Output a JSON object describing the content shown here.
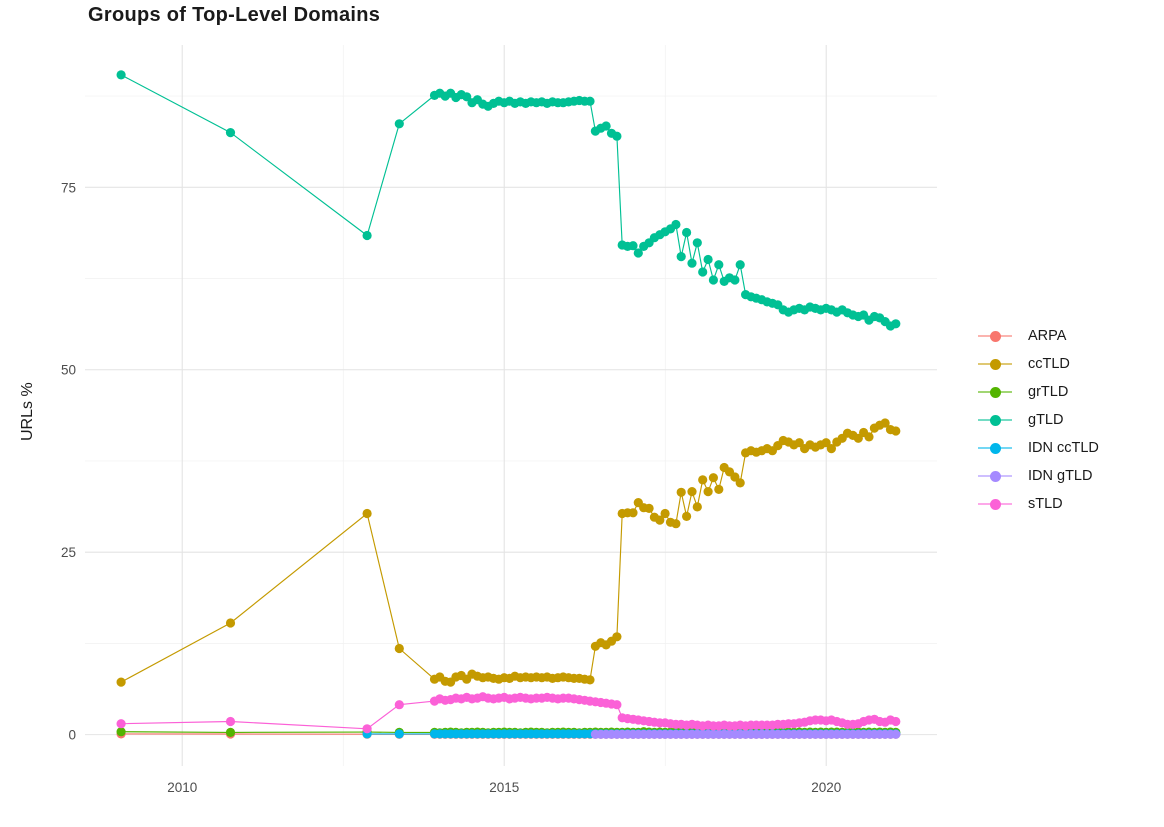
{
  "page": {
    "title": "Groups of Top-Level Domains",
    "y_axis_title": "URLs %"
  },
  "chart_data": {
    "type": "line",
    "title": "Groups of Top-Level Domains",
    "xlabel": "",
    "ylabel": "URLs %",
    "grid": true,
    "legend_position": "right",
    "background": "#ffffff",
    "grid_major_color": "#e4e4e4",
    "grid_minor_color": "#f0f0f0",
    "axis_text_color": "#4d4d4d",
    "x_ticks": [
      2010,
      2015,
      2020
    ],
    "x_tick_labels": [
      "2010",
      "2015",
      "2020"
    ],
    "x_minor_ticks": [
      2012.5,
      2017.5
    ],
    "y_ticks": [
      0,
      25,
      50,
      75
    ],
    "y_tick_labels": [
      "0",
      "25",
      "50",
      "75"
    ],
    "y_minor_ticks": [
      12.5,
      37.5,
      62.5,
      87.5
    ],
    "x_range": [
      2008.49,
      2021.72
    ],
    "y_range": [
      -4.3,
      94.5
    ],
    "sparse_dates": [
      2009.05,
      2010.75,
      2012.87,
      2013.37
    ],
    "dense_start": 2013.9167,
    "dense_step": 0.0833,
    "series": [
      {
        "name": "ARPA",
        "color": "#F8766D",
        "sparse": [
          0.1,
          0.08,
          0.06,
          0.05
        ],
        "dense": [
          0.05,
          0.05,
          0.05,
          0.05,
          0.05,
          0.05,
          0.05,
          0.05,
          0.05,
          0.05,
          0.05,
          0.05,
          0.05,
          0.05,
          0.05,
          0.05,
          0.05,
          0.05,
          0.05,
          0.05,
          0.05,
          0.05,
          0.05,
          0.05,
          0.05,
          0.05,
          0.05,
          0.05,
          0.05,
          0.05,
          0.05,
          0.05,
          0.05,
          0.05,
          0.05,
          0.05,
          0.05,
          0.05,
          0.05,
          0.05,
          0.05,
          0.05,
          0.05,
          0.05,
          0.05,
          0.05,
          0.05,
          0.05,
          0.05,
          0.05,
          0.05,
          0.05,
          0.05,
          0.05,
          0.05,
          0.05,
          0.05,
          0.05,
          0.05,
          0.05,
          0.05,
          0.05,
          0.05,
          0.05,
          0.05,
          0.05,
          0.05,
          0.05,
          0.05,
          0.05,
          0.05,
          0.05,
          0.05,
          0.05,
          0.05,
          0.05,
          0.05,
          0.05,
          0.05,
          0.05,
          0.05,
          0.05,
          0.05,
          0.05,
          0.05,
          0.05,
          0.05
        ]
      },
      {
        "name": "ccTLD",
        "color": "#C49A00",
        "sparse": [
          7.2,
          15.3,
          30.3,
          11.8
        ],
        "dense": [
          7.6,
          7.9,
          7.3,
          7.2,
          7.9,
          8.1,
          7.6,
          8.3,
          8.0,
          7.8,
          7.9,
          7.7,
          7.6,
          7.8,
          7.7,
          8.0,
          7.8,
          7.9,
          7.8,
          7.9,
          7.8,
          7.9,
          7.7,
          7.8,
          7.9,
          7.8,
          7.7,
          7.7,
          7.6,
          7.5,
          12.1,
          12.6,
          12.3,
          12.8,
          13.4,
          30.3,
          30.4,
          30.4,
          31.8,
          31.1,
          31.0,
          29.8,
          29.4,
          30.3,
          29.1,
          28.9,
          33.2,
          29.9,
          33.3,
          31.2,
          34.9,
          33.3,
          35.2,
          33.6,
          36.6,
          36.0,
          35.3,
          34.5,
          38.6,
          38.9,
          38.7,
          38.9,
          39.2,
          38.9,
          39.6,
          40.3,
          40.1,
          39.7,
          40.0,
          39.2,
          39.7,
          39.4,
          39.7,
          40.0,
          39.2,
          40.1,
          40.6,
          41.3,
          41.0,
          40.6,
          41.4,
          40.8,
          42.0,
          42.4,
          42.7,
          41.8,
          41.6
        ]
      },
      {
        "name": "grTLD",
        "color": "#53B400",
        "sparse": [
          0.4,
          0.3,
          0.35,
          0.3
        ],
        "dense": [
          0.3,
          0.25,
          0.3,
          0.35,
          0.3,
          0.25,
          0.3,
          0.3,
          0.35,
          0.3,
          0.25,
          0.3,
          0.3,
          0.35,
          0.3,
          0.3,
          0.25,
          0.3,
          0.35,
          0.3,
          0.3,
          0.25,
          0.3,
          0.3,
          0.35,
          0.3,
          0.3,
          0.25,
          0.3,
          0.3,
          0.35,
          0.3,
          0.3,
          0.35,
          0.3,
          0.3,
          0.35,
          0.3,
          0.3,
          0.4,
          0.35,
          0.3,
          0.35,
          0.3,
          0.35,
          0.4,
          0.35,
          0.3,
          0.35,
          0.3,
          0.35,
          0.3,
          0.35,
          0.35,
          0.3,
          0.35,
          0.3,
          0.35,
          0.3,
          0.35,
          0.3,
          0.35,
          0.3,
          0.35,
          0.35,
          0.3,
          0.35,
          0.3,
          0.35,
          0.3,
          0.35,
          0.3,
          0.35,
          0.3,
          0.35,
          0.35,
          0.3,
          0.35,
          0.3,
          0.35,
          0.3,
          0.35,
          0.3,
          0.35,
          0.3,
          0.35,
          0.3
        ]
      },
      {
        "name": "gTLD",
        "color": "#00C094",
        "sparse": [
          90.4,
          82.5,
          68.4,
          83.7
        ],
        "dense": [
          87.6,
          87.9,
          87.5,
          87.9,
          87.3,
          87.7,
          87.4,
          86.6,
          87.0,
          86.4,
          86.1,
          86.5,
          86.8,
          86.6,
          86.8,
          86.5,
          86.7,
          86.5,
          86.7,
          86.6,
          86.7,
          86.5,
          86.7,
          86.6,
          86.6,
          86.7,
          86.8,
          86.9,
          86.8,
          86.8,
          82.7,
          83.1,
          83.4,
          82.4,
          82.0,
          67.1,
          66.9,
          67.0,
          66.0,
          66.9,
          67.4,
          68.1,
          68.5,
          68.9,
          69.3,
          69.9,
          65.5,
          68.8,
          64.6,
          67.4,
          63.4,
          65.1,
          62.3,
          64.4,
          62.1,
          62.6,
          62.3,
          64.4,
          60.3,
          60.0,
          59.8,
          59.6,
          59.3,
          59.1,
          58.9,
          58.2,
          57.9,
          58.2,
          58.4,
          58.2,
          58.6,
          58.4,
          58.2,
          58.4,
          58.2,
          57.9,
          58.2,
          57.8,
          57.5,
          57.3,
          57.5,
          56.8,
          57.3,
          57.1,
          56.6,
          56.0,
          56.3
        ]
      },
      {
        "name": "IDN ccTLD",
        "color": "#00B6EB",
        "sparse": [
          null,
          null,
          0.1,
          0.1
        ],
        "dense": [
          0.1,
          0.1,
          0.1,
          0.1,
          0.1,
          0.1,
          0.1,
          0.1,
          0.1,
          0.1,
          0.1,
          0.1,
          0.1,
          0.1,
          0.1,
          0.1,
          0.1,
          0.1,
          0.1,
          0.1,
          0.1,
          0.1,
          0.1,
          0.1,
          0.1,
          0.1,
          0.1,
          0.1,
          0.1,
          0.1,
          0.1,
          0.1,
          0.1,
          0.1,
          0.1,
          0.1,
          0.1,
          0.1,
          0.1,
          0.1,
          0.1,
          0.1,
          0.1,
          0.1,
          0.1,
          0.1,
          0.1,
          0.1,
          0.1,
          0.1,
          0.1,
          0.1,
          0.1,
          0.1,
          0.1,
          0.1,
          0.1,
          0.1,
          0.1,
          0.1,
          0.1,
          0.1,
          0.1,
          0.1,
          0.1,
          0.1,
          0.1,
          0.1,
          0.1,
          0.1,
          0.1,
          0.1,
          0.1,
          0.1,
          0.1,
          0.1,
          0.1,
          0.1,
          0.1,
          0.1,
          0.1,
          0.1,
          0.1,
          0.1,
          0.1,
          0.1,
          0.1
        ]
      },
      {
        "name": "IDN gTLD",
        "color": "#A58AFF",
        "sparse": [
          null,
          null,
          null,
          null
        ],
        "dense": [
          null,
          null,
          null,
          null,
          null,
          null,
          null,
          null,
          null,
          null,
          null,
          null,
          null,
          null,
          null,
          null,
          null,
          null,
          null,
          null,
          null,
          null,
          null,
          null,
          null,
          null,
          null,
          null,
          null,
          null,
          0.05,
          0.05,
          0.05,
          0.05,
          0.05,
          0.05,
          0.05,
          0.05,
          0.05,
          0.05,
          0.05,
          0.05,
          0.05,
          0.05,
          0.05,
          0.05,
          0.05,
          0.05,
          0.05,
          0.05,
          0.05,
          0.05,
          0.05,
          0.05,
          0.05,
          0.05,
          0.05,
          0.05,
          0.05,
          0.05,
          0.05,
          0.05,
          0.05,
          0.05,
          0.05,
          0.05,
          0.05,
          0.05,
          0.05,
          0.05,
          0.05,
          0.05,
          0.05,
          0.05,
          0.05,
          0.05,
          0.05,
          0.05,
          0.05,
          0.05,
          0.05,
          0.05,
          0.05,
          0.05,
          0.05,
          0.05,
          0.05
        ]
      },
      {
        "name": "sTLD",
        "color": "#FB61D7",
        "sparse": [
          1.5,
          1.8,
          0.8,
          4.1
        ],
        "dense": [
          4.6,
          4.9,
          4.7,
          4.8,
          5.0,
          4.9,
          5.1,
          4.9,
          5.0,
          5.2,
          5.0,
          4.9,
          5.0,
          5.1,
          4.9,
          5.0,
          5.1,
          5.0,
          4.9,
          5.0,
          5.0,
          5.1,
          5.0,
          4.9,
          5.0,
          5.0,
          4.9,
          4.8,
          4.7,
          4.6,
          4.5,
          4.4,
          4.3,
          4.2,
          4.1,
          2.3,
          2.2,
          2.1,
          2.0,
          1.9,
          1.8,
          1.7,
          1.6,
          1.6,
          1.5,
          1.4,
          1.4,
          1.3,
          1.4,
          1.3,
          1.2,
          1.3,
          1.2,
          1.2,
          1.3,
          1.2,
          1.2,
          1.3,
          1.2,
          1.3,
          1.3,
          1.3,
          1.3,
          1.3,
          1.4,
          1.4,
          1.5,
          1.5,
          1.6,
          1.7,
          1.9,
          2.0,
          2.0,
          1.9,
          2.0,
          1.8,
          1.6,
          1.4,
          1.4,
          1.5,
          1.8,
          2.0,
          2.1,
          1.8,
          1.7,
          2.0,
          1.8
        ]
      }
    ]
  }
}
